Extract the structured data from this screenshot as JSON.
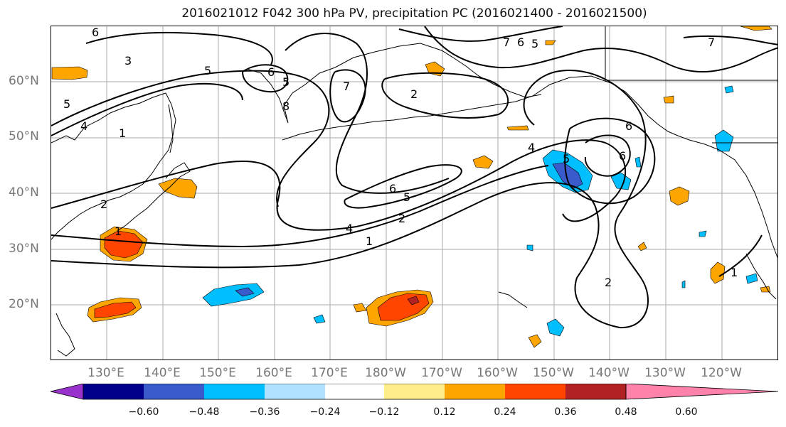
{
  "title": "2016021012 F042 300 hPa PV, precipitation PC (2016021400 - 2016021500)",
  "lat_labels": [
    "60°N",
    "50°N",
    "40°N",
    "30°N",
    "20°N"
  ],
  "lon_labels": [
    "130°E",
    "140°E",
    "150°E",
    "160°E",
    "170°E",
    "180°W",
    "170°W",
    "160°W",
    "150°W",
    "140°W",
    "130°W",
    "120°W"
  ],
  "contour_labels": [
    "6",
    "3",
    "5",
    "5",
    "4",
    "1",
    "6",
    "7",
    "2",
    "7",
    "6",
    "5",
    "7",
    "1",
    "4",
    "6",
    "6",
    "5",
    "2",
    "4",
    "1",
    "2",
    "6",
    "2",
    "1",
    "5",
    "8",
    "5"
  ],
  "colorbar": {
    "ticks": [
      "−0.60",
      "−0.48",
      "−0.36",
      "−0.24",
      "−0.12",
      "0.12",
      "0.24",
      "0.36",
      "0.48",
      "0.60"
    ],
    "colors": [
      "#9932cc",
      "#00008b",
      "#3a5bcc",
      "#00bfff",
      "#b0e2ff",
      "#ffffff",
      "#ffec8b",
      "#ffa500",
      "#ff4500",
      "#b22222",
      "#ff82ab"
    ]
  }
}
